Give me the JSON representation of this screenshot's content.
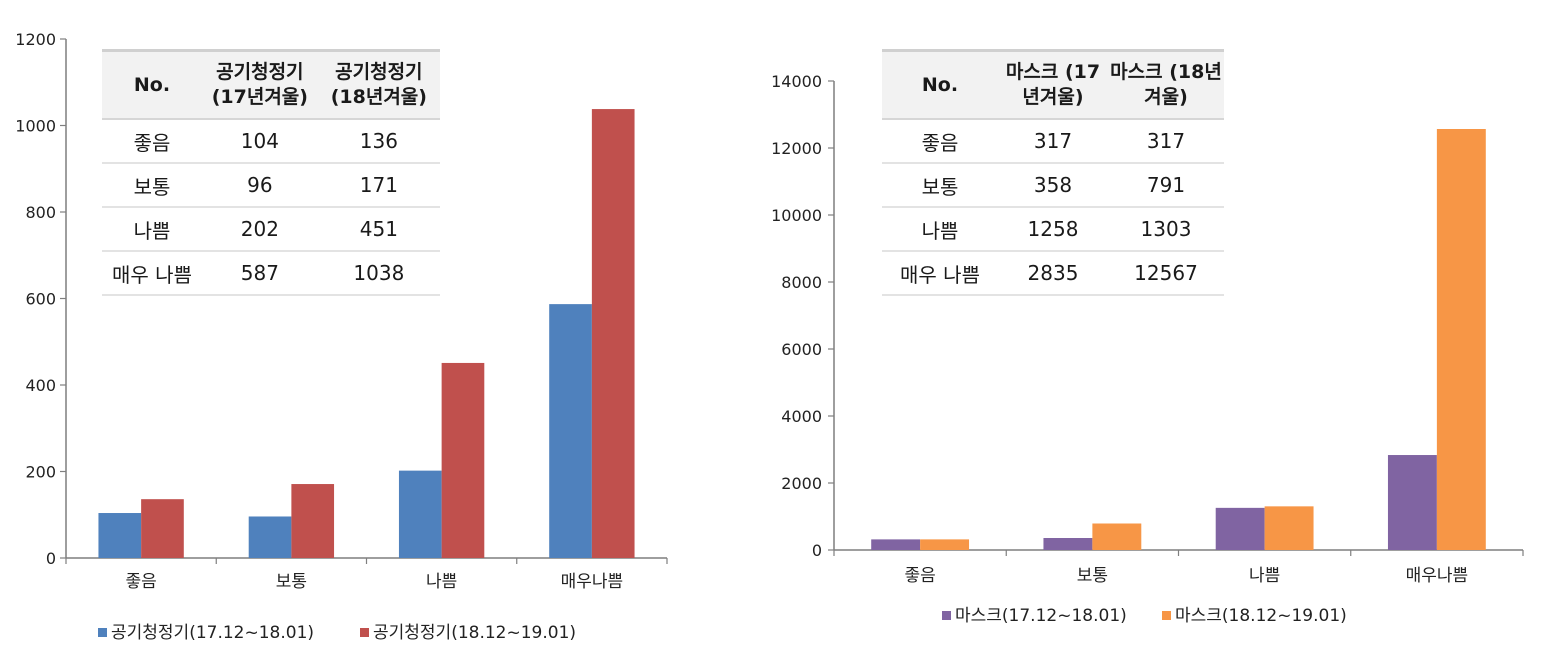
{
  "charts": [
    {
      "table": {
        "headers": [
          "No.",
          "공기청정기 (17년겨울)",
          "공기청정기 (18년겨울)"
        ],
        "rows": [
          [
            "좋음",
            "104",
            "136"
          ],
          [
            "보통",
            "96",
            "171"
          ],
          [
            "나쁨",
            "202",
            "451"
          ],
          [
            "매우 나쁨",
            "587",
            "1038"
          ]
        ]
      }
    },
    {
      "table": {
        "headers": [
          "No.",
          "마스크 (17년겨울)",
          "마스크 (18년겨울)"
        ],
        "rows": [
          [
            "좋음",
            "317",
            "317"
          ],
          [
            "보통",
            "358",
            "791"
          ],
          [
            "나쁨",
            "1258",
            "1303"
          ],
          [
            "매우 나쁨",
            "2835",
            "12567"
          ]
        ]
      }
    }
  ],
  "chart_data": [
    {
      "type": "bar",
      "categories": [
        "좋음",
        "보통",
        "나쁨",
        "매우나쁨"
      ],
      "series": [
        {
          "name": "공기청정기(17.12~18.01)",
          "values": [
            104,
            96,
            202,
            587
          ],
          "color": "#4f81bd"
        },
        {
          "name": "공기청정기(18.12~19.01)",
          "values": [
            136,
            171,
            451,
            1038
          ],
          "color": "#c0504d"
        }
      ],
      "ylim": [
        0,
        1200
      ],
      "yticks": [
        0,
        200,
        400,
        600,
        800,
        1000,
        1200
      ],
      "legend": "bottom",
      "grid": false
    },
    {
      "type": "bar",
      "categories": [
        "좋음",
        "보통",
        "나쁨",
        "매우나쁨"
      ],
      "series": [
        {
          "name": "마스크(17.12~18.01)",
          "values": [
            317,
            358,
            1258,
            2835
          ],
          "color": "#8064a2"
        },
        {
          "name": "마스크(18.12~19.01)",
          "values": [
            317,
            791,
            1303,
            12567
          ],
          "color": "#f79646"
        }
      ],
      "ylim": [
        0,
        14000
      ],
      "yticks": [
        0,
        2000,
        4000,
        6000,
        8000,
        10000,
        12000,
        14000
      ],
      "legend": "bottom",
      "grid": false
    }
  ]
}
